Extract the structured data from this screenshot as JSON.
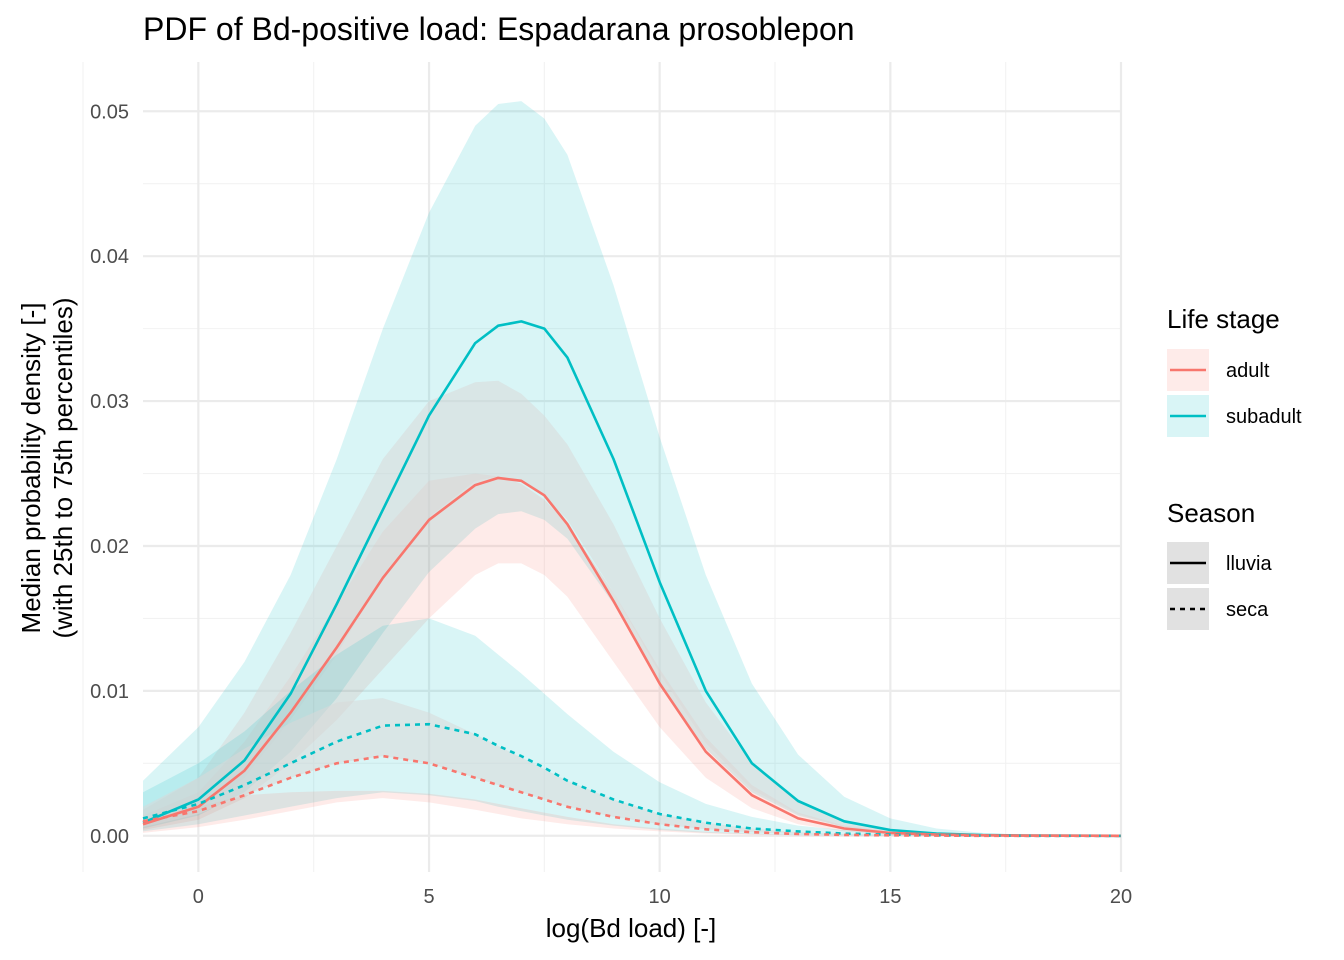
{
  "chart_data": {
    "type": "line",
    "title": "PDF of Bd-positive load: Espadarana prosoblepon",
    "xlabel": "log(Bd load) [-]",
    "ylabel": "Median probability density [-]",
    "ylabel_line2": "(with 25th to 75th percentiles)",
    "xlim": [
      -1.2,
      20
    ],
    "ylim": [
      -0.0025,
      0.0534
    ],
    "x_ticks": [
      0,
      5,
      10,
      15,
      20
    ],
    "x_tick_labels": [
      "0",
      "5",
      "10",
      "15",
      "20"
    ],
    "y_ticks": [
      0,
      0.01,
      0.02,
      0.03,
      0.04,
      0.05
    ],
    "y_tick_labels": [
      "0.00",
      "0.01",
      "0.02",
      "0.03",
      "0.04",
      "0.05"
    ],
    "grid": true,
    "colors": {
      "adult": "#F8766D",
      "subadult": "#00BFC4",
      "band_neutral": "#d9d9d9"
    },
    "legend": {
      "placement": "right",
      "groups": [
        {
          "title": "Life stage",
          "items": [
            {
              "label": "adult",
              "key": "adult"
            },
            {
              "label": "subadult",
              "key": "subadult"
            }
          ]
        },
        {
          "title": "Season",
          "items": [
            {
              "label": "lluvia",
              "linetype": "solid"
            },
            {
              "label": "seca",
              "linetype": "dashed"
            }
          ]
        }
      ]
    },
    "x": [
      -1.2,
      0,
      1,
      2,
      3,
      4,
      5,
      6,
      6.5,
      7,
      7.5,
      8,
      9,
      10,
      11,
      12,
      13,
      14,
      15,
      16,
      17,
      18,
      20
    ],
    "series": [
      {
        "life_stage": "subadult",
        "season": "lluvia",
        "median": [
          0.0009,
          0.0025,
          0.0052,
          0.0098,
          0.016,
          0.0225,
          0.029,
          0.034,
          0.0352,
          0.0355,
          0.035,
          0.033,
          0.026,
          0.0175,
          0.01,
          0.005,
          0.0024,
          0.001,
          0.0004,
          0.00015,
          5e-05,
          2e-05,
          0.0
        ],
        "lower": [
          0.0005,
          0.0014,
          0.003,
          0.0058,
          0.0095,
          0.014,
          0.0182,
          0.0212,
          0.0222,
          0.0224,
          0.0218,
          0.0205,
          0.016,
          0.0105,
          0.006,
          0.003,
          0.0014,
          0.0006,
          0.0002,
          8e-05,
          3e-05,
          1e-05,
          0.0
        ],
        "upper": [
          0.0038,
          0.0075,
          0.012,
          0.018,
          0.026,
          0.035,
          0.043,
          0.049,
          0.0505,
          0.0507,
          0.0495,
          0.047,
          0.038,
          0.0275,
          0.018,
          0.0105,
          0.0056,
          0.0027,
          0.0012,
          0.0005,
          0.0002,
          7e-05,
          0.0
        ]
      },
      {
        "life_stage": "adult",
        "season": "lluvia",
        "median": [
          0.0008,
          0.002,
          0.0045,
          0.0085,
          0.013,
          0.0178,
          0.0218,
          0.0242,
          0.0247,
          0.0245,
          0.0235,
          0.0215,
          0.0162,
          0.0105,
          0.0058,
          0.0028,
          0.0012,
          0.0005,
          0.0002,
          8e-05,
          3e-05,
          1e-05,
          0.0
        ],
        "lower": [
          0.0004,
          0.0011,
          0.0026,
          0.005,
          0.008,
          0.0115,
          0.015,
          0.018,
          0.0188,
          0.0188,
          0.018,
          0.0165,
          0.012,
          0.0075,
          0.004,
          0.0019,
          0.0008,
          0.0003,
          0.00012,
          5e-05,
          2e-05,
          0.0,
          0.0
        ],
        "upper": [
          0.0014,
          0.003,
          0.0065,
          0.011,
          0.016,
          0.021,
          0.0245,
          0.025,
          0.0248,
          0.0243,
          0.0232,
          0.0215,
          0.0168,
          0.0115,
          0.0068,
          0.0035,
          0.0016,
          0.0007,
          0.0003,
          0.0001,
          4e-05,
          1e-05,
          0.0
        ]
      },
      {
        "life_stage": "neutral",
        "season": "lluvia",
        "lower": [
          0.0006,
          0.0016,
          0.004,
          0.008,
          0.0125,
          0.018,
          0.022,
          0.0245,
          0.0248,
          0.0245,
          0.0235,
          0.0218,
          0.0168,
          0.0112,
          0.0064,
          0.0032,
          0.0015,
          0.0006,
          0.00025,
          0.0001,
          4e-05,
          1e-05,
          0.0
        ],
        "upper": [
          0.0018,
          0.004,
          0.0085,
          0.014,
          0.02,
          0.026,
          0.03,
          0.0313,
          0.0314,
          0.0305,
          0.029,
          0.027,
          0.0215,
          0.015,
          0.0092,
          0.005,
          0.0024,
          0.001,
          0.0004,
          0.00015,
          5e-05,
          2e-05,
          0.0
        ]
      },
      {
        "life_stage": "subadult",
        "season": "seca",
        "median": [
          0.0012,
          0.0022,
          0.0035,
          0.005,
          0.0065,
          0.0076,
          0.0077,
          0.007,
          0.0062,
          0.0055,
          0.0047,
          0.0038,
          0.0025,
          0.0015,
          0.0009,
          0.0005,
          0.0003,
          0.00015,
          8e-05,
          3e-05,
          1e-05,
          0.0,
          0.0
        ],
        "lower": [
          0.0003,
          0.0008,
          0.0014,
          0.002,
          0.0026,
          0.003,
          0.0028,
          0.0024,
          0.002,
          0.0017,
          0.0014,
          0.0011,
          0.0007,
          0.0004,
          0.0002,
          0.0001,
          5e-05,
          2e-05,
          0.0,
          0.0,
          0.0,
          0.0,
          0.0
        ],
        "upper": [
          0.003,
          0.005,
          0.0072,
          0.01,
          0.0125,
          0.0145,
          0.015,
          0.0138,
          0.0125,
          0.0112,
          0.0098,
          0.0084,
          0.0058,
          0.0037,
          0.0022,
          0.0013,
          0.0007,
          0.0004,
          0.0002,
          0.0001,
          4e-05,
          1e-05,
          0.0
        ]
      },
      {
        "life_stage": "adult",
        "season": "seca",
        "median": [
          0.001,
          0.0017,
          0.0028,
          0.004,
          0.005,
          0.0055,
          0.005,
          0.004,
          0.0035,
          0.003,
          0.0025,
          0.002,
          0.0013,
          0.0008,
          0.00045,
          0.00025,
          0.00012,
          6e-05,
          3e-05,
          1e-05,
          0.0,
          0.0,
          0.0
        ],
        "lower": [
          0.0002,
          0.0006,
          0.0011,
          0.0017,
          0.0023,
          0.0026,
          0.0023,
          0.0018,
          0.0015,
          0.0012,
          0.001,
          0.0008,
          0.0005,
          0.0003,
          0.00015,
          8e-05,
          4e-05,
          2e-05,
          0.0,
          0.0,
          0.0,
          0.0,
          0.0
        ],
        "upper": [
          0.0012,
          0.002,
          0.0028,
          0.003,
          0.0031,
          0.0031,
          0.0029,
          0.0025,
          0.0022,
          0.0019,
          0.0016,
          0.0013,
          0.0008,
          0.0005,
          0.00028,
          0.00015,
          8e-05,
          4e-05,
          2e-05,
          1e-05,
          0.0,
          0.0,
          0.0
        ]
      },
      {
        "life_stage": "neutral",
        "season": "seca",
        "lower": [
          0.0006,
          0.0015,
          0.0028,
          0.004,
          0.005,
          0.0055,
          0.005,
          0.004,
          0.0035,
          0.003,
          0.0025,
          0.002,
          0.0013,
          0.0008,
          0.00045,
          0.00025,
          0.00012,
          6e-05,
          3e-05,
          1e-05,
          0.0,
          0.0,
          0.0
        ],
        "upper": [
          0.002,
          0.004,
          0.006,
          0.0078,
          0.0092,
          0.0095,
          0.0085,
          0.007,
          0.0062,
          0.0054,
          0.0046,
          0.0038,
          0.0025,
          0.0015,
          0.0009,
          0.0005,
          0.00025,
          0.00012,
          6e-05,
          2e-05,
          1e-05,
          0.0,
          0.0
        ]
      }
    ]
  }
}
